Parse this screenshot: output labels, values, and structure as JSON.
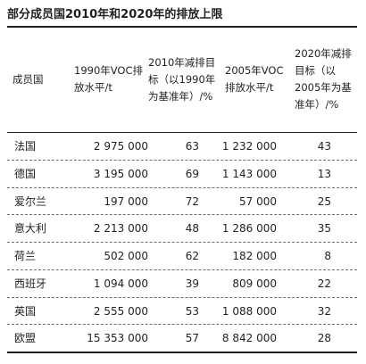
{
  "title": "部分成员国2010年和2020年的排放上限",
  "headers": [
    "成员国",
    "1990年VOC排放水平/t",
    "2010年减排目标（以1990年为基准年）/%",
    "2005年VOC排放水平/t",
    "2020年减排目标（以2005年为基准年）/%"
  ],
  "rows": [
    {
      "country": "法国",
      "voc1990": "2 975 000",
      "target2010": "63",
      "voc2005": "1 232 000",
      "target2020": "43"
    },
    {
      "country": "德国",
      "voc1990": "3 195 000",
      "target2010": "69",
      "voc2005": "1 143 000",
      "target2020": "13"
    },
    {
      "country": "爱尔兰",
      "voc1990": "197 000",
      "target2010": "72",
      "voc2005": "57 000",
      "target2020": "25"
    },
    {
      "country": "意大利",
      "voc1990": "2 213 000",
      "target2010": "48",
      "voc2005": "1 286 000",
      "target2020": "35"
    },
    {
      "country": "荷兰",
      "voc1990": "502 000",
      "target2010": "62",
      "voc2005": "182 000",
      "target2020": "8"
    },
    {
      "country": "西班牙",
      "voc1990": "1 094 000",
      "target2010": "39",
      "voc2005": "809 000",
      "target2020": "22"
    },
    {
      "country": "英国",
      "voc1990": "2 555 000",
      "target2010": "53",
      "voc2005": "1 088 000",
      "target2020": "32"
    },
    {
      "country": "欧盟",
      "voc1990": "15 353 000",
      "target2010": "57",
      "voc2005": "8 842 000",
      "target2020": "28"
    }
  ]
}
